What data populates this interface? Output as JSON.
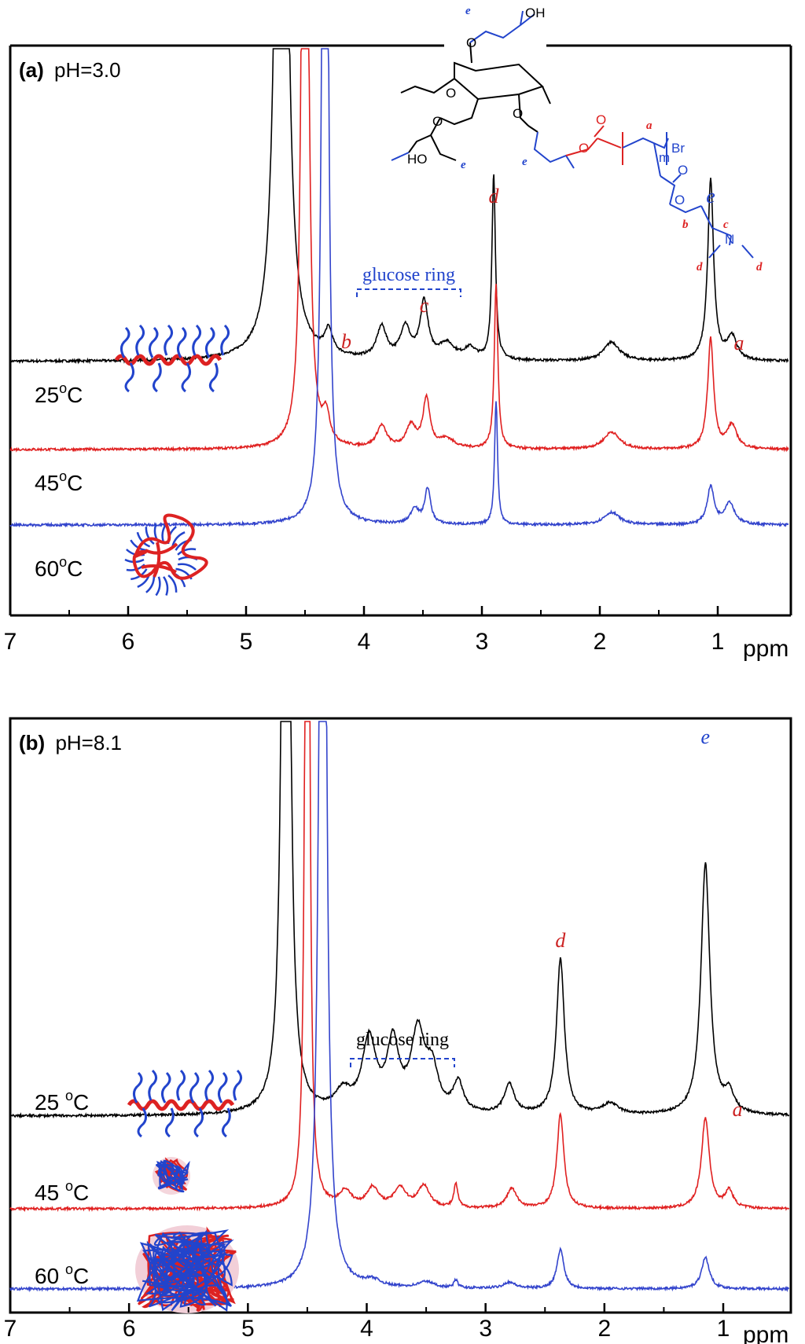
{
  "chart_data": [
    {
      "type": "line",
      "panel": "a",
      "title_prefix": "(a)",
      "title": "pH=3.0",
      "xlabel": "ppm",
      "xlim": [
        7.0,
        0.4
      ],
      "x_ticks": [
        "7",
        "6",
        "5",
        "4",
        "3",
        "2",
        "1"
      ],
      "glucose_label": "glucose ring",
      "peak_labels": [
        {
          "text": "b",
          "ppm": 4.15,
          "color": "#cc2222"
        },
        {
          "text": "c",
          "ppm": 3.49,
          "color": "#cc2222"
        },
        {
          "text": "d",
          "ppm": 2.9,
          "color": "#cc2222"
        },
        {
          "text": "e",
          "ppm": 1.06,
          "color": "#2244cc"
        },
        {
          "text": "a",
          "ppm": 0.82,
          "color": "#cc2222"
        }
      ],
      "series": [
        {
          "name": "25°C",
          "temperature": "25",
          "unit": "°C",
          "color": "#000000",
          "peaks": [
            {
              "ppm": 4.7,
              "height": 100,
              "width": 0.035
            },
            {
              "ppm": 4.3,
              "height": 30,
              "width": 0.04
            },
            {
              "ppm": 3.85,
              "height": 40,
              "width": 0.05
            },
            {
              "ppm": 3.65,
              "height": 40,
              "width": 0.05
            },
            {
              "ppm": 3.49,
              "height": 72,
              "width": 0.04
            },
            {
              "ppm": 3.3,
              "height": 20,
              "width": 0.08
            },
            {
              "ppm": 3.1,
              "height": 14,
              "width": 0.06
            },
            {
              "ppm": 2.9,
              "height": 235,
              "width": 0.018
            },
            {
              "ppm": 1.9,
              "height": 24,
              "width": 0.08
            },
            {
              "ppm": 1.06,
              "height": 230,
              "width": 0.03
            },
            {
              "ppm": 0.88,
              "height": 30,
              "width": 0.05
            }
          ]
        },
        {
          "name": "45°C",
          "temperature": "45",
          "unit": "°C",
          "color": "#e02020",
          "peaks": [
            {
              "ppm": 4.5,
              "height": 100,
              "width": 0.02
            },
            {
              "ppm": 4.32,
              "height": 35,
              "width": 0.035
            },
            {
              "ppm": 3.85,
              "height": 28,
              "width": 0.05
            },
            {
              "ppm": 3.6,
              "height": 28,
              "width": 0.05
            },
            {
              "ppm": 3.47,
              "height": 62,
              "width": 0.035
            },
            {
              "ppm": 3.3,
              "height": 12,
              "width": 0.08
            },
            {
              "ppm": 2.88,
              "height": 208,
              "width": 0.018
            },
            {
              "ppm": 1.9,
              "height": 22,
              "width": 0.08
            },
            {
              "ppm": 1.06,
              "height": 140,
              "width": 0.03
            },
            {
              "ppm": 0.88,
              "height": 30,
              "width": 0.05
            }
          ]
        },
        {
          "name": "60°C",
          "temperature": "60",
          "unit": "°C",
          "color": "#3344cc",
          "peaks": [
            {
              "ppm": 4.33,
              "height": 100,
              "width": 0.02
            },
            {
              "ppm": 3.57,
              "height": 20,
              "width": 0.04
            },
            {
              "ppm": 3.46,
              "height": 45,
              "width": 0.03
            },
            {
              "ppm": 2.88,
              "height": 158,
              "width": 0.015
            },
            {
              "ppm": 1.9,
              "height": 16,
              "width": 0.08
            },
            {
              "ppm": 1.06,
              "height": 48,
              "width": 0.035
            },
            {
              "ppm": 0.9,
              "height": 28,
              "width": 0.05
            }
          ]
        }
      ]
    },
    {
      "type": "line",
      "panel": "b",
      "title_prefix": "(b)",
      "title": "pH=8.1",
      "xlabel": "ppm",
      "xlim": [
        7.0,
        0.4
      ],
      "x_ticks": [
        "7",
        "6",
        "5",
        "4",
        "3",
        "2",
        "1"
      ],
      "glucose_label": "glucose ring",
      "peak_labels": [
        {
          "text": "d",
          "ppm": 2.37,
          "color": "#cc2222"
        },
        {
          "text": "e",
          "ppm": 1.15,
          "color": "#2244cc"
        },
        {
          "text": "a",
          "ppm": 0.88,
          "color": "#cc2222"
        }
      ],
      "series": [
        {
          "name": "25 °C",
          "temperature": "25 ",
          "unit": "°C",
          "color": "#000000",
          "peaks": [
            {
              "ppm": 4.68,
              "height": 100,
              "width": 0.025
            },
            {
              "ppm": 4.2,
              "height": 25,
              "width": 0.08
            },
            {
              "ppm": 3.98,
              "height": 92,
              "width": 0.07
            },
            {
              "ppm": 3.78,
              "height": 85,
              "width": 0.06
            },
            {
              "ppm": 3.57,
              "height": 100,
              "width": 0.07
            },
            {
              "ppm": 3.45,
              "height": 50,
              "width": 0.06
            },
            {
              "ppm": 3.23,
              "height": 38,
              "width": 0.05
            },
            {
              "ppm": 2.8,
              "height": 38,
              "width": 0.05
            },
            {
              "ppm": 2.37,
              "height": 198,
              "width": 0.04
            },
            {
              "ppm": 1.95,
              "height": 14,
              "width": 0.08
            },
            {
              "ppm": 1.15,
              "height": 320,
              "width": 0.045
            },
            {
              "ppm": 0.95,
              "height": 25,
              "width": 0.05
            }
          ]
        },
        {
          "name": "45 °C",
          "temperature": "45 ",
          "unit": "°C",
          "color": "#e02020",
          "peaks": [
            {
              "ppm": 4.5,
              "height": 100,
              "width": 0.015
            },
            {
              "ppm": 4.18,
              "height": 20,
              "width": 0.06
            },
            {
              "ppm": 3.95,
              "height": 25,
              "width": 0.06
            },
            {
              "ppm": 3.72,
              "height": 25,
              "width": 0.06
            },
            {
              "ppm": 3.52,
              "height": 28,
              "width": 0.06
            },
            {
              "ppm": 3.25,
              "height": 30,
              "width": 0.02
            },
            {
              "ppm": 2.78,
              "height": 25,
              "width": 0.05
            },
            {
              "ppm": 2.37,
              "height": 120,
              "width": 0.035
            },
            {
              "ppm": 1.15,
              "height": 115,
              "width": 0.04
            },
            {
              "ppm": 0.95,
              "height": 22,
              "width": 0.04
            }
          ]
        },
        {
          "name": "60 °C",
          "temperature": "60 ",
          "unit": "°C",
          "color": "#3344cc",
          "peaks": [
            {
              "ppm": 4.37,
              "height": 100,
              "width": 0.025
            },
            {
              "ppm": 3.95,
              "height": 8,
              "width": 0.08
            },
            {
              "ppm": 3.5,
              "height": 8,
              "width": 0.08
            },
            {
              "ppm": 3.25,
              "height": 10,
              "width": 0.02
            },
            {
              "ppm": 2.8,
              "height": 8,
              "width": 0.06
            },
            {
              "ppm": 2.37,
              "height": 50,
              "width": 0.035
            },
            {
              "ppm": 1.15,
              "height": 40,
              "width": 0.04
            }
          ]
        }
      ]
    }
  ],
  "structure": {
    "labels": {
      "oh_top": "OH",
      "ho_left": "HO",
      "br": "Br",
      "m": "m",
      "n": "N",
      "o": "O",
      "a": "a",
      "b": "b",
      "c": "c",
      "d": "d",
      "e": "e"
    },
    "colors": {
      "sugar": "#000000",
      "ester": "#dd2222",
      "polymer": "#2244cc"
    }
  }
}
